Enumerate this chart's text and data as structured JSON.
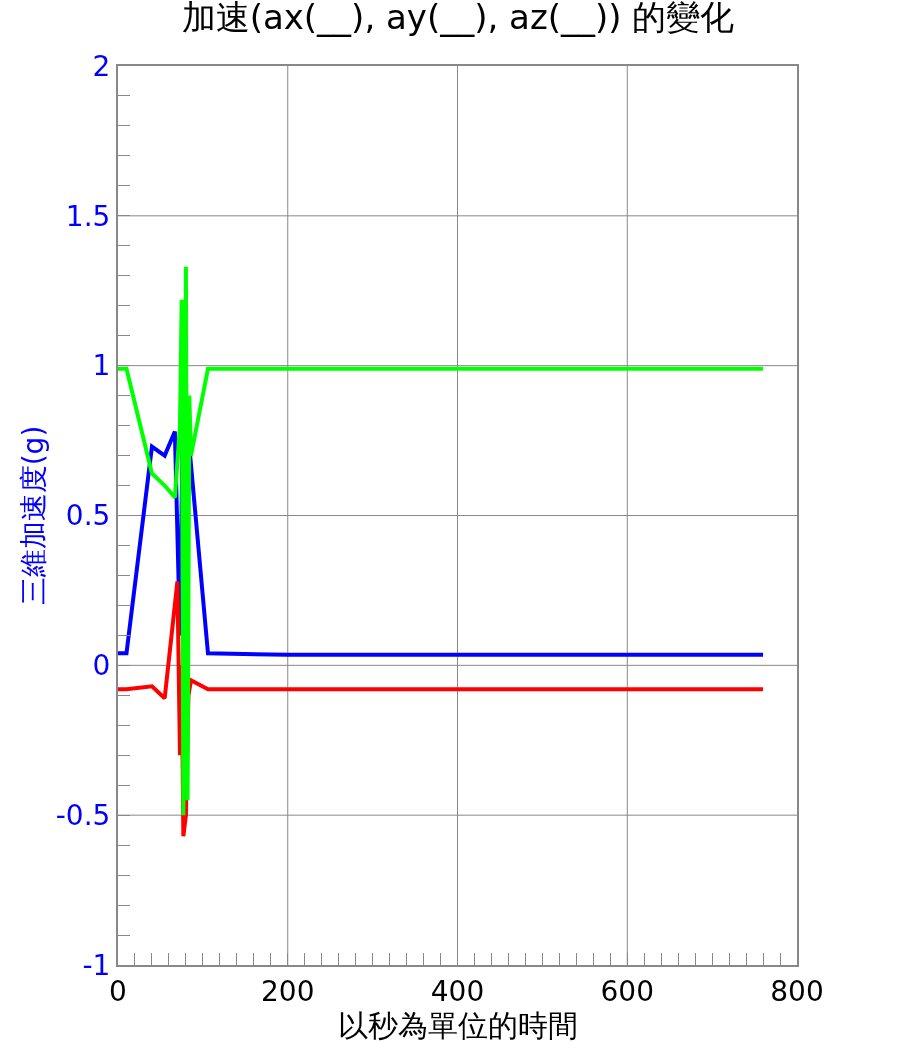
{
  "chart_data": {
    "type": "line",
    "title": "加速(ax(__), ay(__), az(__)) 的變化",
    "xlabel": "以秒為單位的時間",
    "ylabel": "三維加速度(g)",
    "xlim": [
      0,
      800
    ],
    "ylim": [
      -1,
      2
    ],
    "xticks": [
      0,
      {
        "value": 20,
        "label": null
      },
      {
        "value": 40,
        "label": null
      },
      {
        "value": 60,
        "label": null
      },
      {
        "value": 80,
        "label": null
      },
      {
        "value": 100,
        "label": null
      },
      {
        "value": 120,
        "label": null
      },
      {
        "value": 140,
        "label": null
      },
      {
        "value": 160,
        "label": null
      },
      {
        "value": 180,
        "label": null
      },
      200,
      {
        "value": 220,
        "label": null
      },
      {
        "value": 240,
        "label": null
      },
      {
        "value": 260,
        "label": null
      },
      {
        "value": 280,
        "label": null
      },
      {
        "value": 300,
        "label": null
      },
      {
        "value": 320,
        "label": null
      },
      {
        "value": 340,
        "label": null
      },
      {
        "value": 360,
        "label": null
      },
      {
        "value": 380,
        "label": null
      },
      400,
      {
        "value": 420,
        "label": null
      },
      {
        "value": 440,
        "label": null
      },
      {
        "value": 460,
        "label": null
      },
      {
        "value": 480,
        "label": null
      },
      {
        "value": 500,
        "label": null
      },
      {
        "value": 520,
        "label": null
      },
      {
        "value": 540,
        "label": null
      },
      {
        "value": 560,
        "label": null
      },
      {
        "value": 580,
        "label": null
      },
      600,
      {
        "value": 620,
        "label": null
      },
      {
        "value": 640,
        "label": null
      },
      {
        "value": 660,
        "label": null
      },
      {
        "value": 680,
        "label": null
      },
      {
        "value": 700,
        "label": null
      },
      {
        "value": 720,
        "label": null
      },
      {
        "value": 740,
        "label": null
      },
      {
        "value": 760,
        "label": null
      },
      {
        "value": 780,
        "label": null
      },
      800
    ],
    "yticks": [
      -1,
      {
        "value": -0.9,
        "label": null
      },
      {
        "value": -0.8,
        "label": null
      },
      {
        "value": -0.7,
        "label": null
      },
      {
        "value": -0.6,
        "label": null
      },
      -0.5,
      {
        "value": -0.4,
        "label": null
      },
      {
        "value": -0.3,
        "label": null
      },
      {
        "value": -0.2,
        "label": null
      },
      {
        "value": -0.1,
        "label": null
      },
      0,
      {
        "value": 0.1,
        "label": null
      },
      {
        "value": 0.2,
        "label": null
      },
      {
        "value": 0.3,
        "label": null
      },
      {
        "value": 0.4,
        "label": null
      },
      0.5,
      {
        "value": 0.6,
        "label": null
      },
      {
        "value": 0.7,
        "label": null
      },
      {
        "value": 0.8,
        "label": null
      },
      {
        "value": 0.9,
        "label": null
      },
      1,
      {
        "value": 1.1,
        "label": null
      },
      {
        "value": 1.2,
        "label": null
      },
      {
        "value": 1.3,
        "label": null
      },
      {
        "value": 1.4,
        "label": null
      },
      1.5,
      {
        "value": 1.6,
        "label": null
      },
      {
        "value": 1.7,
        "label": null
      },
      {
        "value": 1.8,
        "label": null
      },
      {
        "value": 1.9,
        "label": null
      },
      2
    ],
    "grid": true,
    "line_style": "solid",
    "marker": "none",
    "series": [
      {
        "color": "#0000ff",
        "x": [
          0,
          10,
          40,
          55,
          67,
          73,
          76,
          85,
          106,
          200,
          400,
          600,
          760
        ],
        "values": [
          0.04,
          0.04,
          0.73,
          0.7,
          0.78,
          0.1,
          0.75,
          0.7,
          0.04,
          0.035,
          0.035,
          0.035,
          0.035
        ]
      },
      {
        "color": "#ff0000",
        "x": [
          0,
          10,
          40,
          55,
          70,
          73,
          75,
          77,
          80,
          83,
          86,
          106,
          200,
          400,
          600,
          760
        ],
        "values": [
          -0.08,
          -0.08,
          -0.07,
          -0.11,
          0.28,
          -0.3,
          0.0,
          -0.57,
          -0.5,
          -0.1,
          -0.05,
          -0.08,
          -0.08,
          -0.08,
          -0.08,
          -0.08
        ]
      },
      {
        "color": "#00ff00",
        "x": [
          0,
          10,
          40,
          55,
          67,
          73,
          75,
          77,
          80,
          82,
          84,
          86,
          106,
          200,
          400,
          600,
          760
        ],
        "values": [
          0.99,
          0.99,
          0.64,
          0.6,
          0.56,
          0.8,
          1.22,
          -0.5,
          1.33,
          -0.45,
          0.9,
          0.7,
          0.99,
          0.99,
          0.99,
          0.99,
          0.99
        ]
      }
    ]
  }
}
